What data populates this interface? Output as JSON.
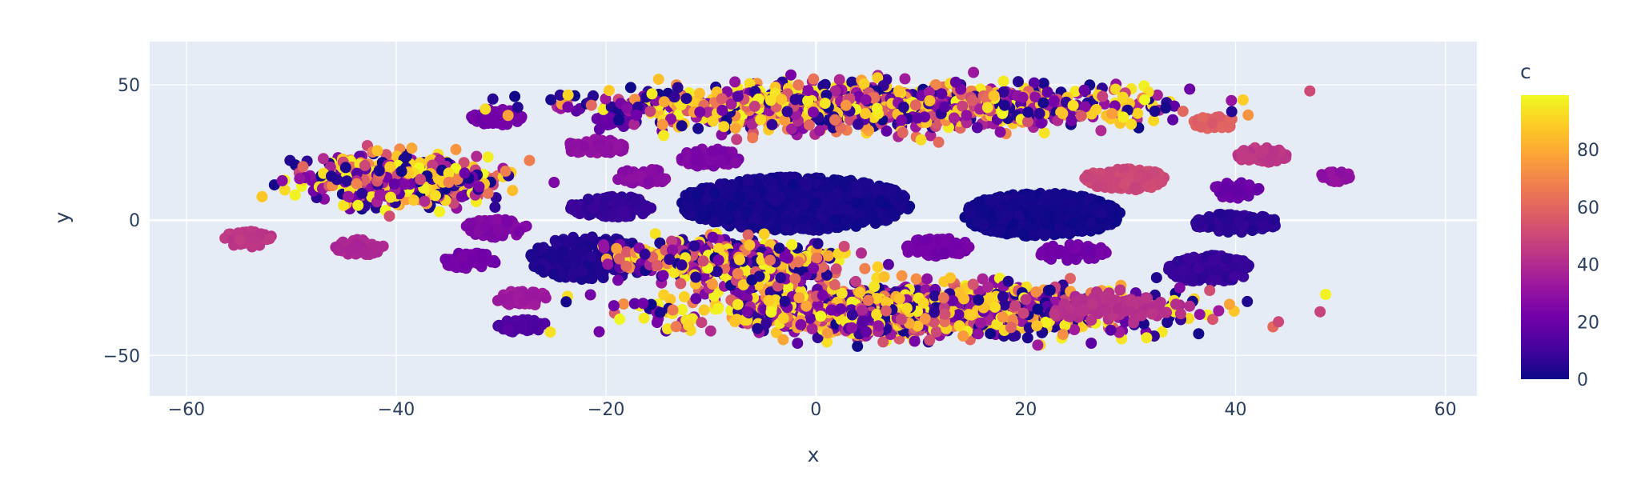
{
  "chart_data": {
    "type": "scatter",
    "title": "",
    "xlabel": "x",
    "ylabel": "y",
    "xlim": [
      -63.5,
      63
    ],
    "ylim": [
      -65,
      66
    ],
    "x_ticks": [
      -60,
      -40,
      -20,
      0,
      20,
      40,
      60
    ],
    "x_tick_labels": [
      "−60",
      "−40",
      "−20",
      "0",
      "20",
      "40",
      "60"
    ],
    "y_ticks": [
      -50,
      0,
      50
    ],
    "y_tick_labels": [
      "−50",
      "0",
      "50"
    ],
    "grid": true,
    "colorbar": {
      "title": "c",
      "range": [
        0,
        99
      ],
      "ticks": [
        0,
        20,
        40,
        60,
        80
      ],
      "tick_labels": [
        "0",
        "20",
        "40",
        "60",
        "80"
      ],
      "colorscale": "plasma"
    },
    "clusters": [
      {
        "cx": -2,
        "cy": 6,
        "rx": 11,
        "ry": 10,
        "c": 2,
        "n": 900,
        "spread": "uniform"
      },
      {
        "cx": 21.5,
        "cy": 2,
        "rx": 7.5,
        "ry": 8,
        "c": 1,
        "n": 700,
        "spread": "uniform"
      },
      {
        "cx": -21.5,
        "cy": -14,
        "rx": 6,
        "ry": 8,
        "c": 4,
        "n": 250,
        "spread": "uniform"
      },
      {
        "cx": 37.5,
        "cy": -18,
        "rx": 4,
        "ry": 5,
        "c": 8,
        "n": 150,
        "spread": "uniform"
      },
      {
        "cx": 40,
        "cy": -1,
        "rx": 4,
        "ry": 3.5,
        "c": 6,
        "n": 130,
        "spread": "uniform"
      },
      {
        "cx": 29.5,
        "cy": 15,
        "rx": 4,
        "ry": 4,
        "c": 50,
        "n": 130,
        "spread": "uniform"
      },
      {
        "cx": -10,
        "cy": 23,
        "rx": 3,
        "ry": 3.5,
        "c": 25,
        "n": 70,
        "spread": "uniform"
      },
      {
        "cx": -16.5,
        "cy": 16,
        "rx": 2.5,
        "ry": 3,
        "c": 28,
        "n": 60,
        "spread": "uniform"
      },
      {
        "cx": -19.5,
        "cy": 5,
        "rx": 4,
        "ry": 4,
        "c": 8,
        "n": 110,
        "spread": "uniform"
      },
      {
        "cx": -21,
        "cy": 27,
        "rx": 2.8,
        "ry": 3,
        "c": 30,
        "n": 60,
        "spread": "uniform"
      },
      {
        "cx": -19,
        "cy": 37,
        "rx": 2,
        "ry": 2.5,
        "c": 18,
        "n": 45,
        "spread": "uniform"
      },
      {
        "cx": -30.5,
        "cy": 38,
        "rx": 2.5,
        "ry": 3,
        "c": 22,
        "n": 55,
        "spread": "uniform"
      },
      {
        "cx": -30.5,
        "cy": -3,
        "rx": 3,
        "ry": 3.5,
        "c": 26,
        "n": 65,
        "spread": "uniform"
      },
      {
        "cx": -33,
        "cy": -15,
        "rx": 2.5,
        "ry": 3,
        "c": 22,
        "n": 55,
        "spread": "uniform"
      },
      {
        "cx": -43.5,
        "cy": -10,
        "rx": 2.3,
        "ry": 3,
        "c": 38,
        "n": 50,
        "spread": "uniform"
      },
      {
        "cx": -28,
        "cy": -29,
        "rx": 2.5,
        "ry": 3,
        "c": 34,
        "n": 50,
        "spread": "uniform"
      },
      {
        "cx": -28,
        "cy": -39,
        "rx": 2.3,
        "ry": 2.5,
        "c": 14,
        "n": 45,
        "spread": "uniform"
      },
      {
        "cx": 11.5,
        "cy": -10,
        "rx": 3.2,
        "ry": 3.5,
        "c": 22,
        "n": 60,
        "spread": "uniform"
      },
      {
        "cx": 24.5,
        "cy": -12,
        "rx": 3.2,
        "ry": 3.2,
        "c": 22,
        "n": 55,
        "spread": "uniform"
      },
      {
        "cx": 40,
        "cy": 11,
        "rx": 2.3,
        "ry": 3,
        "c": 20,
        "n": 45,
        "spread": "uniform"
      },
      {
        "cx": 42.5,
        "cy": 24,
        "rx": 2.5,
        "ry": 3,
        "c": 44,
        "n": 50,
        "spread": "uniform"
      },
      {
        "cx": 49.5,
        "cy": 16,
        "rx": 1.5,
        "ry": 2,
        "c": 30,
        "n": 25,
        "spread": "uniform"
      },
      {
        "cx": 38,
        "cy": 36,
        "rx": 2,
        "ry": 2.5,
        "c": 58,
        "n": 30,
        "spread": "uniform"
      },
      {
        "cx": -54,
        "cy": -7,
        "rx": 2.5,
        "ry": 3,
        "c": 44,
        "n": 45,
        "spread": "uniform"
      },
      {
        "cx": 6,
        "cy": 42,
        "rx": 22,
        "ry": 8,
        "c": "mixed",
        "n": 1300,
        "spread": "gauss"
      },
      {
        "cx": 10,
        "cy": -33,
        "rx": 20,
        "ry": 9,
        "c": "mixed",
        "n": 1500,
        "spread": "gauss"
      },
      {
        "cx": -40,
        "cy": 15,
        "rx": 8,
        "ry": 9,
        "c": "mixed",
        "n": 600,
        "spread": "gauss"
      },
      {
        "cx": -8,
        "cy": -15,
        "rx": 9,
        "ry": 7,
        "c": "mixed",
        "n": 600,
        "spread": "gauss"
      },
      {
        "cx": 28,
        "cy": -32,
        "rx": 5,
        "ry": 4,
        "c": 42,
        "n": 140,
        "spread": "gauss"
      }
    ]
  }
}
